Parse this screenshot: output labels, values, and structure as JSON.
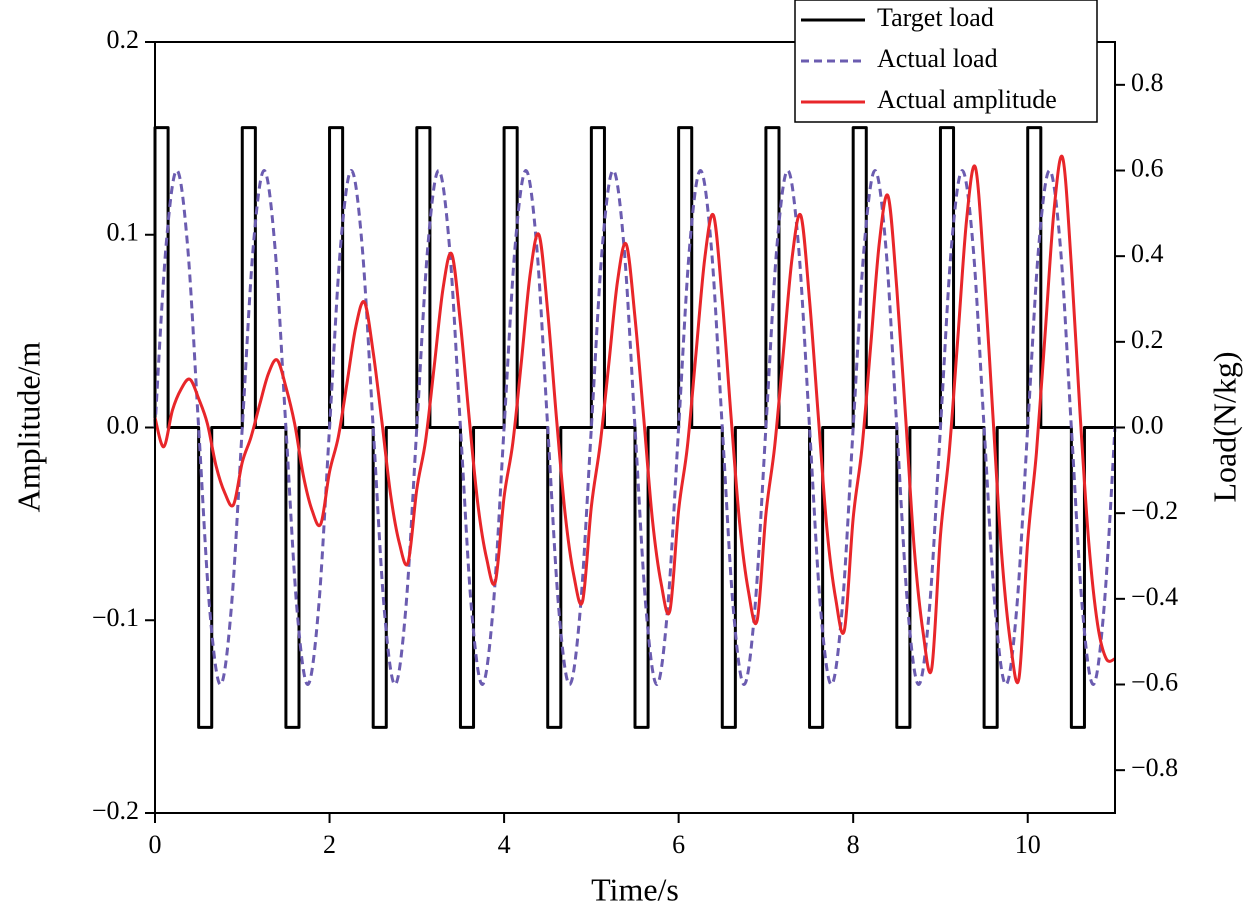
{
  "chart_data": {
    "type": "line",
    "xlabel": "Time/s",
    "ylabel": "Amplitude/m",
    "y2label": "Load(N/kg)",
    "xlim": [
      0,
      11
    ],
    "ylim": [
      -0.2,
      0.2
    ],
    "y2lim": [
      -0.9,
      0.9
    ],
    "xticks": [
      0,
      2,
      4,
      6,
      8,
      10
    ],
    "yticks": [
      {
        "value": -0.2,
        "label": "−0.2"
      },
      {
        "value": -0.1,
        "label": "−0.1"
      },
      {
        "value": 0,
        "label": "0.0"
      },
      0.1,
      0.2
    ],
    "y2ticks": [
      {
        "value": -0.8,
        "label": "−0.8"
      },
      {
        "value": -0.6,
        "label": "−0.6"
      },
      {
        "value": -0.4,
        "label": "−0.4"
      },
      {
        "value": -0.2,
        "label": "−0.2"
      },
      {
        "value": 0,
        "label": "0.0"
      },
      0.2,
      0.4,
      0.6,
      0.8
    ],
    "legend": "upper right",
    "series": [
      {
        "name": "Target load",
        "color": "#000000",
        "style": "solid",
        "axis": "y2",
        "x": [
          0,
          0,
          0.15,
          0.15,
          0.5,
          0.5,
          0.65,
          0.65,
          1,
          1,
          1.15,
          1.15,
          1.5,
          1.5,
          1.65,
          1.65,
          2,
          2,
          2.15,
          2.15,
          2.5,
          2.5,
          2.65,
          2.65,
          3,
          3,
          3.15,
          3.15,
          3.5,
          3.5,
          3.65,
          3.65,
          4,
          4,
          4.15,
          4.15,
          4.5,
          4.5,
          4.65,
          4.65,
          5,
          5,
          5.15,
          5.15,
          5.5,
          5.5,
          5.65,
          5.65,
          6,
          6,
          6.15,
          6.15,
          6.5,
          6.5,
          6.65,
          6.65,
          7,
          7,
          7.15,
          7.15,
          7.5,
          7.5,
          7.65,
          7.65,
          8,
          8,
          8.15,
          8.15,
          8.5,
          8.5,
          8.65,
          8.65,
          9,
          9,
          9.15,
          9.15,
          9.5,
          9.5,
          9.65,
          9.65,
          10,
          10,
          10.15,
          10.15,
          10.5,
          10.5,
          10.65,
          10.65,
          11
        ],
        "values": [
          0,
          0.7,
          0.7,
          0,
          0,
          -0.7,
          -0.7,
          0,
          0,
          0.7,
          0.7,
          0,
          0,
          -0.7,
          -0.7,
          0,
          0,
          0.7,
          0.7,
          0,
          0,
          -0.7,
          -0.7,
          0,
          0,
          0.7,
          0.7,
          0,
          0,
          -0.7,
          -0.7,
          0,
          0,
          0.7,
          0.7,
          0,
          0,
          -0.7,
          -0.7,
          0,
          0,
          0.7,
          0.7,
          0,
          0,
          -0.7,
          -0.7,
          0,
          0,
          0.7,
          0.7,
          0,
          0,
          -0.7,
          -0.7,
          0,
          0,
          0.7,
          0.7,
          0,
          0,
          -0.7,
          -0.7,
          0,
          0,
          0.7,
          0.7,
          0,
          0,
          -0.7,
          -0.7,
          0,
          0,
          0.7,
          0.7,
          0,
          0,
          -0.7,
          -0.7,
          0,
          0,
          0.7,
          0.7,
          0,
          0,
          -0.7,
          -0.7,
          0,
          0
        ]
      },
      {
        "name": "Actual load",
        "color": "#6b5cb0",
        "style": "dashed",
        "axis": "y2",
        "x": [
          0,
          0.125,
          0.25,
          0.375,
          0.5,
          0.625,
          0.75,
          0.875,
          1,
          1.125,
          1.25,
          1.375,
          1.5,
          1.625,
          1.75,
          1.875,
          2,
          2.125,
          2.25,
          2.375,
          2.5,
          2.625,
          2.75,
          2.875,
          3,
          3.125,
          3.25,
          3.375,
          3.5,
          3.625,
          3.75,
          3.875,
          4,
          4.125,
          4.25,
          4.375,
          4.5,
          4.625,
          4.75,
          4.875,
          5,
          5.125,
          5.25,
          5.375,
          5.5,
          5.625,
          5.75,
          5.875,
          6,
          6.125,
          6.25,
          6.375,
          6.5,
          6.625,
          6.75,
          6.875,
          7,
          7.125,
          7.25,
          7.375,
          7.5,
          7.625,
          7.75,
          7.875,
          8,
          8.125,
          8.25,
          8.375,
          8.5,
          8.625,
          8.75,
          8.875,
          9,
          9.125,
          9.25,
          9.375,
          9.5,
          9.625,
          9.75,
          9.875,
          10,
          10.125,
          10.25,
          10.375,
          10.5,
          10.625,
          10.75,
          10.875,
          11
        ],
        "values": [
          0,
          0.42,
          0.6,
          0.42,
          0,
          -0.42,
          -0.6,
          -0.42,
          0,
          0.42,
          0.6,
          0.42,
          0,
          -0.42,
          -0.6,
          -0.42,
          0,
          0.42,
          0.6,
          0.42,
          0,
          -0.42,
          -0.6,
          -0.42,
          0,
          0.42,
          0.6,
          0.42,
          0,
          -0.42,
          -0.6,
          -0.42,
          0,
          0.42,
          0.6,
          0.42,
          0,
          -0.42,
          -0.6,
          -0.42,
          0,
          0.42,
          0.6,
          0.42,
          0,
          -0.42,
          -0.6,
          -0.42,
          0,
          0.42,
          0.6,
          0.42,
          0,
          -0.42,
          -0.6,
          -0.42,
          0,
          0.42,
          0.6,
          0.42,
          0,
          -0.42,
          -0.6,
          -0.42,
          0,
          0.42,
          0.6,
          0.42,
          0,
          -0.42,
          -0.6,
          -0.42,
          0,
          0.42,
          0.6,
          0.42,
          0,
          -0.42,
          -0.6,
          -0.42,
          0,
          0.42,
          0.6,
          0.42,
          0,
          -0.42,
          -0.6,
          -0.42,
          0
        ]
      },
      {
        "name": "Actual amplitude",
        "color": "#e8262a",
        "style": "solid",
        "axis": "y",
        "x": [
          0,
          0.1,
          0.2,
          0.3,
          0.4,
          0.5,
          0.6,
          0.7,
          0.8,
          0.9,
          1,
          1.1,
          1.2,
          1.3,
          1.4,
          1.5,
          1.6,
          1.7,
          1.8,
          1.9,
          2,
          2.1,
          2.2,
          2.3,
          2.4,
          2.5,
          2.6,
          2.7,
          2.8,
          2.9,
          3,
          3.1,
          3.2,
          3.3,
          3.4,
          3.5,
          3.6,
          3.7,
          3.8,
          3.9,
          4,
          4.1,
          4.2,
          4.3,
          4.4,
          4.5,
          4.6,
          4.7,
          4.8,
          4.9,
          5,
          5.1,
          5.2,
          5.3,
          5.4,
          5.5,
          5.6,
          5.7,
          5.8,
          5.9,
          6,
          6.1,
          6.2,
          6.3,
          6.4,
          6.5,
          6.6,
          6.7,
          6.8,
          6.9,
          7,
          7.1,
          7.2,
          7.3,
          7.4,
          7.5,
          7.6,
          7.7,
          7.8,
          7.9,
          8,
          8.1,
          8.2,
          8.3,
          8.4,
          8.5,
          8.6,
          8.7,
          8.8,
          8.9,
          9,
          9.1,
          9.2,
          9.3,
          9.4,
          9.5,
          9.6,
          9.7,
          9.8,
          9.9,
          10,
          10.1,
          10.2,
          10.3,
          10.4,
          10.5,
          10.6,
          10.7,
          10.8,
          10.9,
          11
        ],
        "values": [
          0.005,
          -0.01,
          0.009,
          0.02,
          0.025,
          0.015,
          0.002,
          -0.02,
          -0.034,
          -0.04,
          -0.018,
          -0.005,
          0.012,
          0.028,
          0.035,
          0.021,
          0.002,
          -0.025,
          -0.043,
          -0.05,
          -0.023,
          -0.005,
          0.023,
          0.052,
          0.065,
          0.039,
          0.003,
          -0.035,
          -0.06,
          -0.07,
          -0.032,
          -0.007,
          0.032,
          0.072,
          0.09,
          0.054,
          0.005,
          -0.04,
          -0.068,
          -0.08,
          -0.036,
          -0.008,
          0.035,
          0.08,
          0.1,
          0.06,
          0.005,
          -0.045,
          -0.077,
          -0.09,
          -0.041,
          -0.009,
          0.033,
          0.076,
          0.095,
          0.057,
          0.005,
          -0.048,
          -0.081,
          -0.095,
          -0.043,
          -0.01,
          0.039,
          0.088,
          0.11,
          0.066,
          0.006,
          -0.05,
          -0.085,
          -0.1,
          -0.045,
          -0.01,
          0.039,
          0.088,
          0.11,
          0.066,
          0.006,
          -0.053,
          -0.089,
          -0.105,
          -0.047,
          -0.011,
          0.042,
          0.096,
          0.12,
          0.072,
          0.006,
          -0.063,
          -0.106,
          -0.125,
          -0.056,
          -0.013,
          0.047,
          0.108,
          0.135,
          0.081,
          0.007,
          -0.065,
          -0.111,
          -0.13,
          -0.059,
          -0.013,
          0.049,
          0.112,
          0.14,
          0.084,
          0.007,
          -0.06,
          -0.102,
          -0.12,
          -0.12
        ]
      }
    ]
  }
}
